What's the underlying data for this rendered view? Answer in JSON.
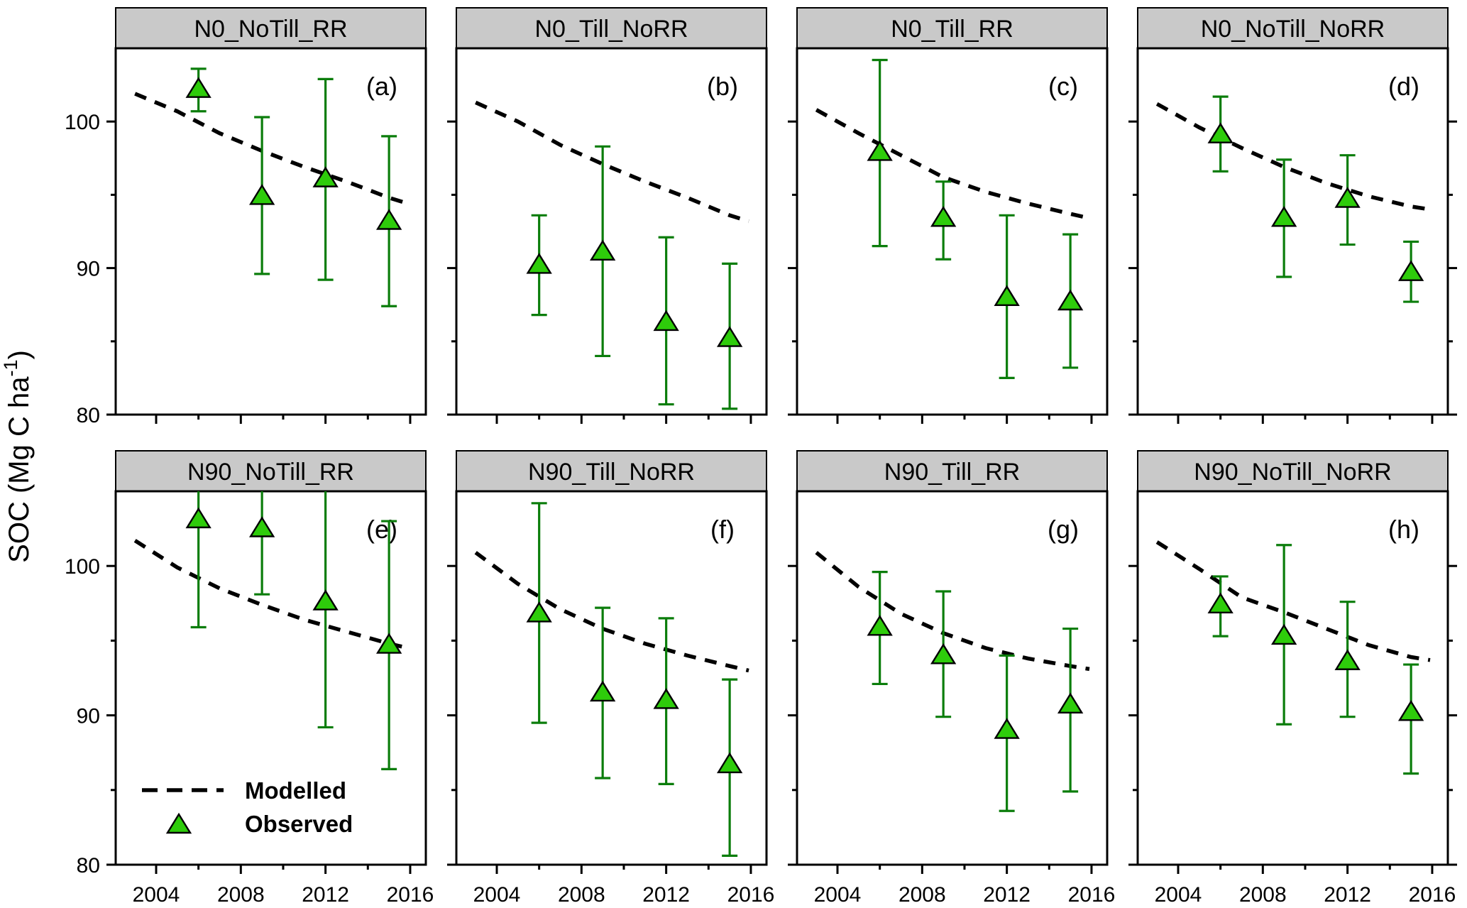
{
  "figure": {
    "y_axis_title": {
      "prefix": "SOC (Mg C ha",
      "superscript": "-1",
      "suffix": ")"
    }
  },
  "legend": {
    "modelled_label": "Modelled",
    "observed_label": "Observed"
  },
  "axes": {
    "y_tick_labels": [
      "100",
      "90",
      "80"
    ],
    "y_tick_values": [
      100,
      90,
      80
    ],
    "x_tick_labels": [
      "2004",
      "2008",
      "2012",
      "2016"
    ],
    "x_tick_values": [
      2004,
      2008,
      2012,
      2016
    ]
  },
  "colors": {
    "marker_fill": "#2ECC0B",
    "marker_edge": "#000000",
    "error_bar": "#0B7D0B",
    "observed_text": "#15A315",
    "modelled_line": "#000000",
    "header_bg": "#C9C9C9",
    "frame": "#000000"
  },
  "chart_data": [
    {
      "type": "line",
      "panel_label": "(a)",
      "title": "N0_NoTill_RR",
      "row": 0,
      "col": 0,
      "ylim": [
        80,
        105
      ],
      "xlim": [
        2002.1,
        2016.75
      ],
      "observed": {
        "years": [
          2006,
          2009,
          2012,
          2015
        ],
        "values": [
          102.3,
          95.0,
          96.2,
          93.3
        ],
        "err_low": [
          100.7,
          89.6,
          89.2,
          87.4
        ],
        "err_high": [
          103.6,
          100.3,
          102.9,
          99.0
        ],
        "err_high_clipped": [
          false,
          false,
          false,
          false
        ]
      },
      "modelled": {
        "years": [
          2003,
          2005,
          2007,
          2009,
          2011,
          2013,
          2015,
          2015.9
        ],
        "values": [
          101.9,
          100.7,
          99.2,
          98.0,
          96.9,
          95.9,
          94.8,
          94.4
        ]
      }
    },
    {
      "type": "line",
      "panel_label": "(b)",
      "title": "N0_Till_NoRR",
      "row": 0,
      "col": 1,
      "ylim": [
        80,
        105
      ],
      "xlim": [
        2002.1,
        2016.75
      ],
      "observed": {
        "years": [
          2006,
          2009,
          2012,
          2015
        ],
        "values": [
          90.3,
          91.2,
          86.4,
          85.3
        ],
        "err_low": [
          86.8,
          84.0,
          80.7,
          80.4
        ],
        "err_high": [
          93.6,
          98.3,
          92.1,
          90.3
        ],
        "err_high_clipped": [
          false,
          false,
          false,
          false
        ]
      },
      "modelled": {
        "years": [
          2003,
          2005,
          2007,
          2009,
          2011,
          2013,
          2015,
          2015.9
        ],
        "values": [
          101.3,
          100.0,
          98.4,
          97.1,
          95.9,
          94.8,
          93.6,
          93.2
        ]
      }
    },
    {
      "type": "line",
      "panel_label": "(c)",
      "title": "N0_Till_RR",
      "row": 0,
      "col": 2,
      "ylim": [
        80,
        105
      ],
      "xlim": [
        2002.1,
        2016.75
      ],
      "observed": {
        "years": [
          2006,
          2009,
          2012,
          2015
        ],
        "values": [
          98.0,
          93.5,
          88.1,
          87.8
        ],
        "err_low": [
          91.5,
          90.6,
          82.5,
          83.2
        ],
        "err_high": [
          104.2,
          95.9,
          93.6,
          92.3
        ],
        "err_high_clipped": [
          false,
          false,
          false,
          false
        ]
      },
      "modelled": {
        "years": [
          2003,
          2005,
          2007,
          2009,
          2011,
          2013,
          2015,
          2015.9
        ],
        "values": [
          100.8,
          99.2,
          97.7,
          96.2,
          95.2,
          94.4,
          93.7,
          93.4
        ]
      }
    },
    {
      "type": "line",
      "panel_label": "(d)",
      "title": "N0_NoTill_NoRR",
      "row": 0,
      "col": 3,
      "ylim": [
        80,
        105
      ],
      "xlim": [
        2002.1,
        2016.75
      ],
      "observed": {
        "years": [
          2006,
          2009,
          2012,
          2015
        ],
        "values": [
          99.2,
          93.5,
          94.8,
          89.8
        ],
        "err_low": [
          96.6,
          89.4,
          91.6,
          87.7
        ],
        "err_high": [
          101.7,
          97.4,
          97.7,
          91.8
        ],
        "err_high_clipped": [
          false,
          false,
          false,
          false
        ]
      },
      "modelled": {
        "years": [
          2003,
          2005,
          2007,
          2009,
          2011,
          2013,
          2015,
          2015.9
        ],
        "values": [
          101.2,
          99.6,
          98.2,
          96.9,
          95.8,
          94.9,
          94.2,
          94.0
        ]
      }
    },
    {
      "type": "line",
      "panel_label": "(e)",
      "title": "N90_NoTill_RR",
      "row": 1,
      "col": 0,
      "ylim": [
        80,
        105
      ],
      "xlim": [
        2002.1,
        2016.75
      ],
      "observed": {
        "years": [
          2006,
          2009,
          2012,
          2015
        ],
        "values": [
          103.2,
          102.6,
          97.7,
          94.8
        ],
        "err_low": [
          95.9,
          98.1,
          89.2,
          86.4
        ],
        "err_high": [
          105.0,
          105.0,
          105.0,
          103.0
        ],
        "err_high_clipped": [
          true,
          true,
          true,
          false
        ]
      },
      "modelled": {
        "years": [
          2003,
          2005,
          2007,
          2009,
          2011,
          2013,
          2015,
          2015.9
        ],
        "values": [
          101.7,
          99.9,
          98.5,
          97.4,
          96.4,
          95.6,
          94.8,
          94.5
        ]
      },
      "has_legend": true
    },
    {
      "type": "line",
      "panel_label": "(f)",
      "title": "N90_Till_NoRR",
      "row": 1,
      "col": 1,
      "ylim": [
        80,
        105
      ],
      "xlim": [
        2002.1,
        2016.75
      ],
      "observed": {
        "years": [
          2006,
          2009,
          2012,
          2015
        ],
        "values": [
          96.9,
          91.6,
          91.1,
          86.8
        ],
        "err_low": [
          89.5,
          85.8,
          85.4,
          80.6
        ],
        "err_high": [
          104.2,
          97.2,
          96.5,
          92.4
        ],
        "err_high_clipped": [
          false,
          false,
          false,
          false
        ]
      },
      "modelled": {
        "years": [
          2003,
          2005,
          2007,
          2009,
          2011,
          2013,
          2015,
          2015.9
        ],
        "values": [
          100.9,
          98.8,
          97.1,
          95.8,
          94.8,
          94.0,
          93.3,
          93.0
        ]
      }
    },
    {
      "type": "line",
      "panel_label": "(g)",
      "title": "N90_Till_RR",
      "row": 1,
      "col": 2,
      "ylim": [
        80,
        105
      ],
      "xlim": [
        2002.1,
        2016.75
      ],
      "observed": {
        "years": [
          2006,
          2009,
          2012,
          2015
        ],
        "values": [
          96.0,
          94.1,
          89.1,
          90.8
        ],
        "err_low": [
          92.1,
          89.9,
          83.6,
          84.9
        ],
        "err_high": [
          99.6,
          98.3,
          94.0,
          95.8
        ],
        "err_high_clipped": [
          false,
          false,
          false,
          false
        ]
      },
      "modelled": {
        "years": [
          2003,
          2005,
          2007,
          2009,
          2011,
          2013,
          2015,
          2015.9
        ],
        "values": [
          100.9,
          98.6,
          96.8,
          95.5,
          94.5,
          93.8,
          93.3,
          93.1
        ]
      }
    },
    {
      "type": "line",
      "panel_label": "(h)",
      "title": "N90_NoTill_NoRR",
      "row": 1,
      "col": 3,
      "ylim": [
        80,
        105
      ],
      "xlim": [
        2002.1,
        2016.75
      ],
      "observed": {
        "years": [
          2006,
          2009,
          2012,
          2015
        ],
        "values": [
          97.5,
          95.4,
          93.7,
          90.3
        ],
        "err_low": [
          95.3,
          89.4,
          89.9,
          86.1
        ],
        "err_high": [
          99.3,
          101.4,
          97.6,
          93.4
        ],
        "err_high_clipped": [
          false,
          false,
          false,
          false
        ]
      },
      "modelled": {
        "years": [
          2003,
          2005,
          2007,
          2009,
          2011,
          2013,
          2015,
          2015.9
        ],
        "values": [
          101.6,
          99.8,
          97.9,
          96.9,
          95.8,
          94.7,
          93.9,
          93.7
        ]
      }
    }
  ]
}
